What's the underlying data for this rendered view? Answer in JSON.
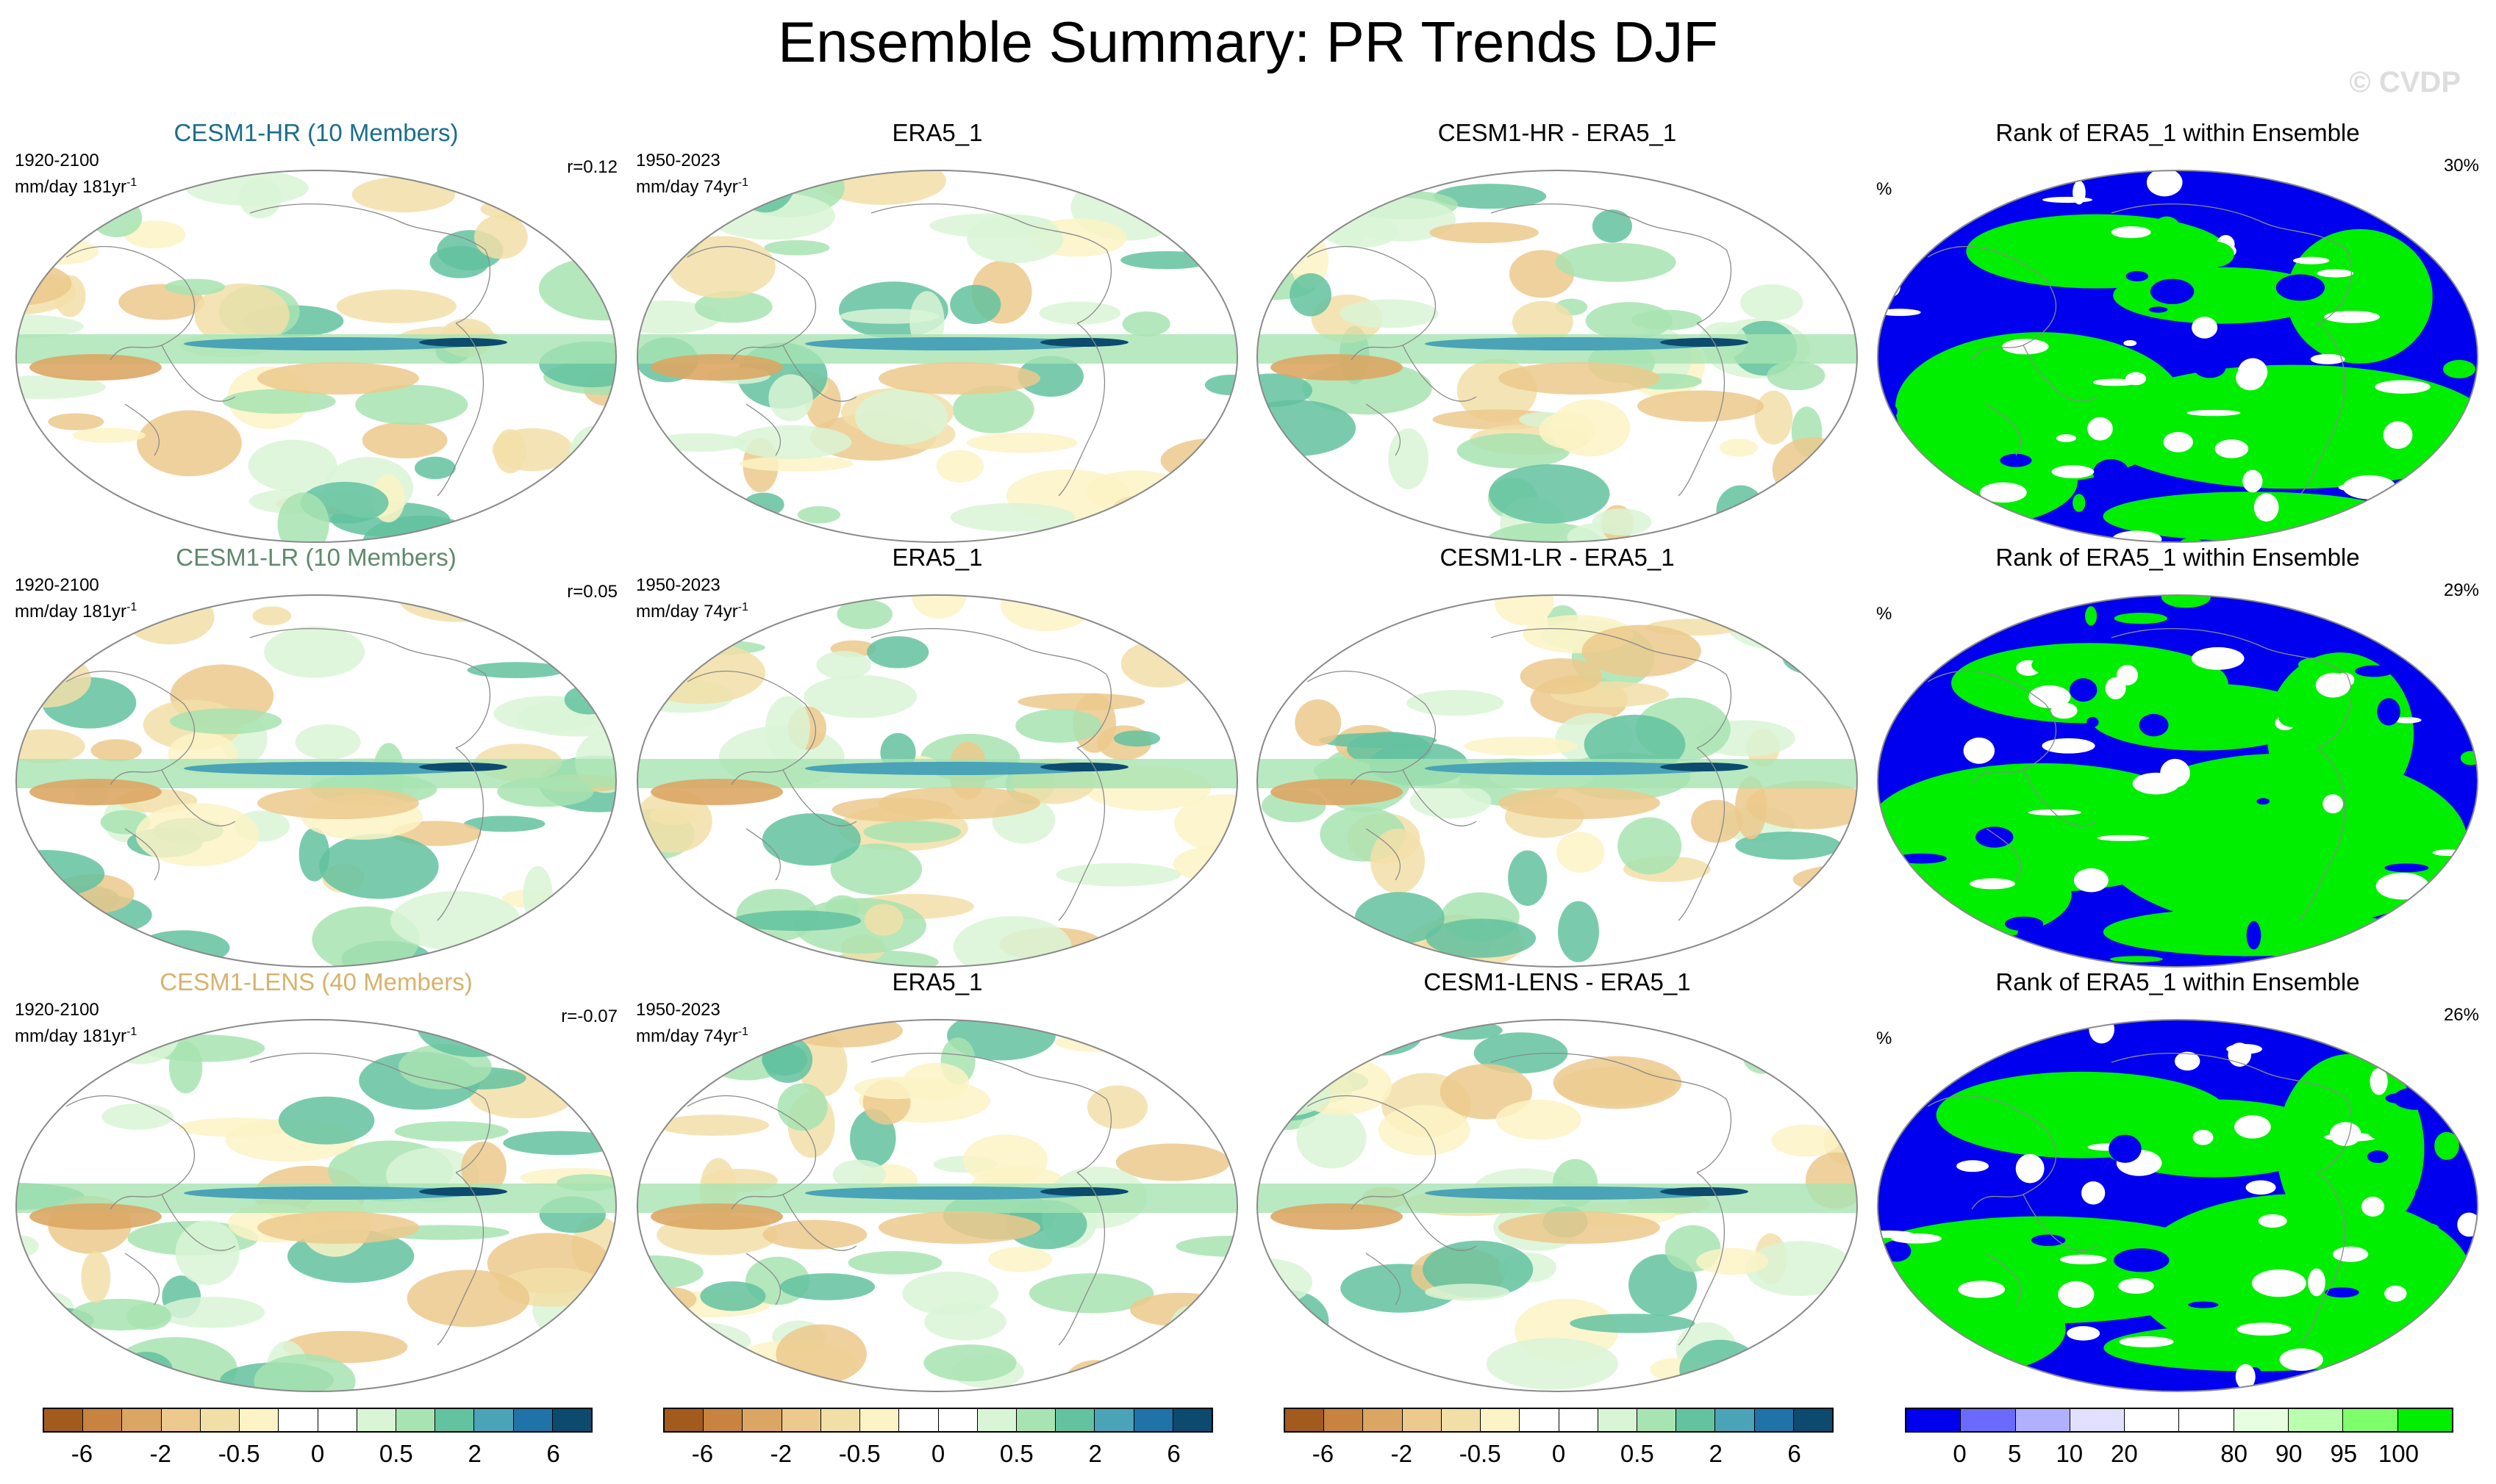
{
  "figure": {
    "title": "Ensemble Summary: PR Trends DJF",
    "watermark": "© CVDP"
  },
  "palettes": {
    "trend": [
      "#a35a1d",
      "#c7833f",
      "#dba664",
      "#ecc98c",
      "#f2dfa8",
      "#fcf3c6",
      "#ffffff",
      "#ffffff",
      "#d9f5d6",
      "#a8e3b2",
      "#63c2a0",
      "#4aa3b6",
      "#1f73a8",
      "#0c4a6e"
    ],
    "rank": [
      "#0000ee",
      "#6a6aff",
      "#b0b0ff",
      "#e1e1ff",
      "#ffffff",
      "#ffffff",
      "#e5ffe0",
      "#b9ffad",
      "#7cff6a",
      "#00ee00"
    ]
  },
  "colorbars": {
    "trend": {
      "labels": [
        {
          "text": "-6",
          "at": 1
        },
        {
          "text": "-2",
          "at": 3
        },
        {
          "text": "-0.5",
          "at": 5
        },
        {
          "text": "0",
          "at": 7
        },
        {
          "text": "0.5",
          "at": 9
        },
        {
          "text": "2",
          "at": 11
        },
        {
          "text": "6",
          "at": 13
        }
      ]
    },
    "rank": {
      "labels": [
        {
          "text": "0",
          "at": 1
        },
        {
          "text": "5",
          "at": 2
        },
        {
          "text": "10",
          "at": 3
        },
        {
          "text": "20",
          "at": 4
        },
        {
          "text": "80",
          "at": 6
        },
        {
          "text": "90",
          "at": 7
        },
        {
          "text": "95",
          "at": 8
        },
        {
          "text": "100",
          "at": 9
        }
      ]
    }
  },
  "rows": [
    {
      "model": {
        "title": "CESM1-HR (10 Members)",
        "title_color": "#1a6e8a",
        "period": "1920-2100",
        "units": "mm/day 181yr",
        "units_sup": "-1",
        "corr": "r=0.12"
      },
      "obs": {
        "title": "ERA5_1",
        "period": "1950-2023",
        "units": "mm/day 74yr",
        "units_sup": "-1"
      },
      "diff": {
        "title": "CESM1-HR - ERA5_1"
      },
      "rank": {
        "title": "Rank of ERA5_1 within Ensemble",
        "unit": "%",
        "coverage": "30%"
      }
    },
    {
      "model": {
        "title": "CESM1-LR (10 Members)",
        "title_color": "#5e8a6c",
        "period": "1920-2100",
        "units": "mm/day 181yr",
        "units_sup": "-1",
        "corr": "r=0.05"
      },
      "obs": {
        "title": "ERA5_1",
        "period": "1950-2023",
        "units": "mm/day 74yr",
        "units_sup": "-1"
      },
      "diff": {
        "title": "CESM1-LR - ERA5_1"
      },
      "rank": {
        "title": "Rank of ERA5_1 within Ensemble",
        "unit": "%",
        "coverage": "29%"
      }
    },
    {
      "model": {
        "title": "CESM1-LENS (40 Members)",
        "title_color": "#d6b36c",
        "period": "1920-2100",
        "units": "mm/day 181yr",
        "units_sup": "-1",
        "corr": "r=-0.07"
      },
      "obs": {
        "title": "ERA5_1",
        "period": "1950-2023",
        "units": "mm/day 74yr",
        "units_sup": "-1"
      },
      "diff": {
        "title": "CESM1-LENS - ERA5_1"
      },
      "rank": {
        "title": "Rank of ERA5_1 within Ensemble",
        "unit": "%",
        "coverage": "26%"
      }
    }
  ],
  "chart_data": [
    {
      "type": "heatmap",
      "title": "CESM1-HR (10 Members)",
      "variable": "PR trend DJF",
      "units": "mm/day 181yr-1",
      "period": "1920-2100",
      "pattern_correlation": 0.12,
      "levels": [
        -6,
        -4,
        -2,
        -1,
        -0.5,
        -0.2,
        0,
        0.2,
        0.5,
        1,
        2,
        4,
        6
      ]
    },
    {
      "type": "heatmap",
      "title": "ERA5_1",
      "variable": "PR trend DJF",
      "units": "mm/day 74yr-1",
      "period": "1950-2023",
      "levels": [
        -6,
        -4,
        -2,
        -1,
        -0.5,
        -0.2,
        0,
        0.2,
        0.5,
        1,
        2,
        4,
        6
      ]
    },
    {
      "type": "heatmap",
      "title": "CESM1-HR - ERA5_1",
      "variable": "PR trend difference",
      "levels": [
        -6,
        -4,
        -2,
        -1,
        -0.5,
        -0.2,
        0,
        0.2,
        0.5,
        1,
        2,
        4,
        6
      ]
    },
    {
      "type": "heatmap",
      "title": "Rank of ERA5_1 within Ensemble",
      "ensemble": "CESM1-HR",
      "units": "%",
      "percent_outside_range": 30,
      "levels": [
        0,
        5,
        10,
        20,
        80,
        90,
        95,
        100
      ]
    },
    {
      "type": "heatmap",
      "title": "CESM1-LR (10 Members)",
      "variable": "PR trend DJF",
      "units": "mm/day 181yr-1",
      "period": "1920-2100",
      "pattern_correlation": 0.05,
      "levels": [
        -6,
        -4,
        -2,
        -1,
        -0.5,
        -0.2,
        0,
        0.2,
        0.5,
        1,
        2,
        4,
        6
      ]
    },
    {
      "type": "heatmap",
      "title": "ERA5_1",
      "variable": "PR trend DJF",
      "units": "mm/day 74yr-1",
      "period": "1950-2023",
      "levels": [
        -6,
        -4,
        -2,
        -1,
        -0.5,
        -0.2,
        0,
        0.2,
        0.5,
        1,
        2,
        4,
        6
      ]
    },
    {
      "type": "heatmap",
      "title": "CESM1-LR - ERA5_1",
      "variable": "PR trend difference",
      "levels": [
        -6,
        -4,
        -2,
        -1,
        -0.5,
        -0.2,
        0,
        0.2,
        0.5,
        1,
        2,
        4,
        6
      ]
    },
    {
      "type": "heatmap",
      "title": "Rank of ERA5_1 within Ensemble",
      "ensemble": "CESM1-LR",
      "units": "%",
      "percent_outside_range": 29,
      "levels": [
        0,
        5,
        10,
        20,
        80,
        90,
        95,
        100
      ]
    },
    {
      "type": "heatmap",
      "title": "CESM1-LENS (40 Members)",
      "variable": "PR trend DJF",
      "units": "mm/day 181yr-1",
      "period": "1920-2100",
      "pattern_correlation": -0.07,
      "levels": [
        -6,
        -4,
        -2,
        -1,
        -0.5,
        -0.2,
        0,
        0.2,
        0.5,
        1,
        2,
        4,
        6
      ]
    },
    {
      "type": "heatmap",
      "title": "ERA5_1",
      "variable": "PR trend DJF",
      "units": "mm/day 74yr-1",
      "period": "1950-2023",
      "levels": [
        -6,
        -4,
        -2,
        -1,
        -0.5,
        -0.2,
        0,
        0.2,
        0.5,
        1,
        2,
        4,
        6
      ]
    },
    {
      "type": "heatmap",
      "title": "CESM1-LENS - ERA5_1",
      "variable": "PR trend difference",
      "levels": [
        -6,
        -4,
        -2,
        -1,
        -0.5,
        -0.2,
        0,
        0.2,
        0.5,
        1,
        2,
        4,
        6
      ]
    },
    {
      "type": "heatmap",
      "title": "Rank of ERA5_1 within Ensemble",
      "ensemble": "CESM1-LENS",
      "units": "%",
      "percent_outside_range": 26,
      "levels": [
        0,
        5,
        10,
        20,
        80,
        90,
        95,
        100
      ]
    }
  ]
}
